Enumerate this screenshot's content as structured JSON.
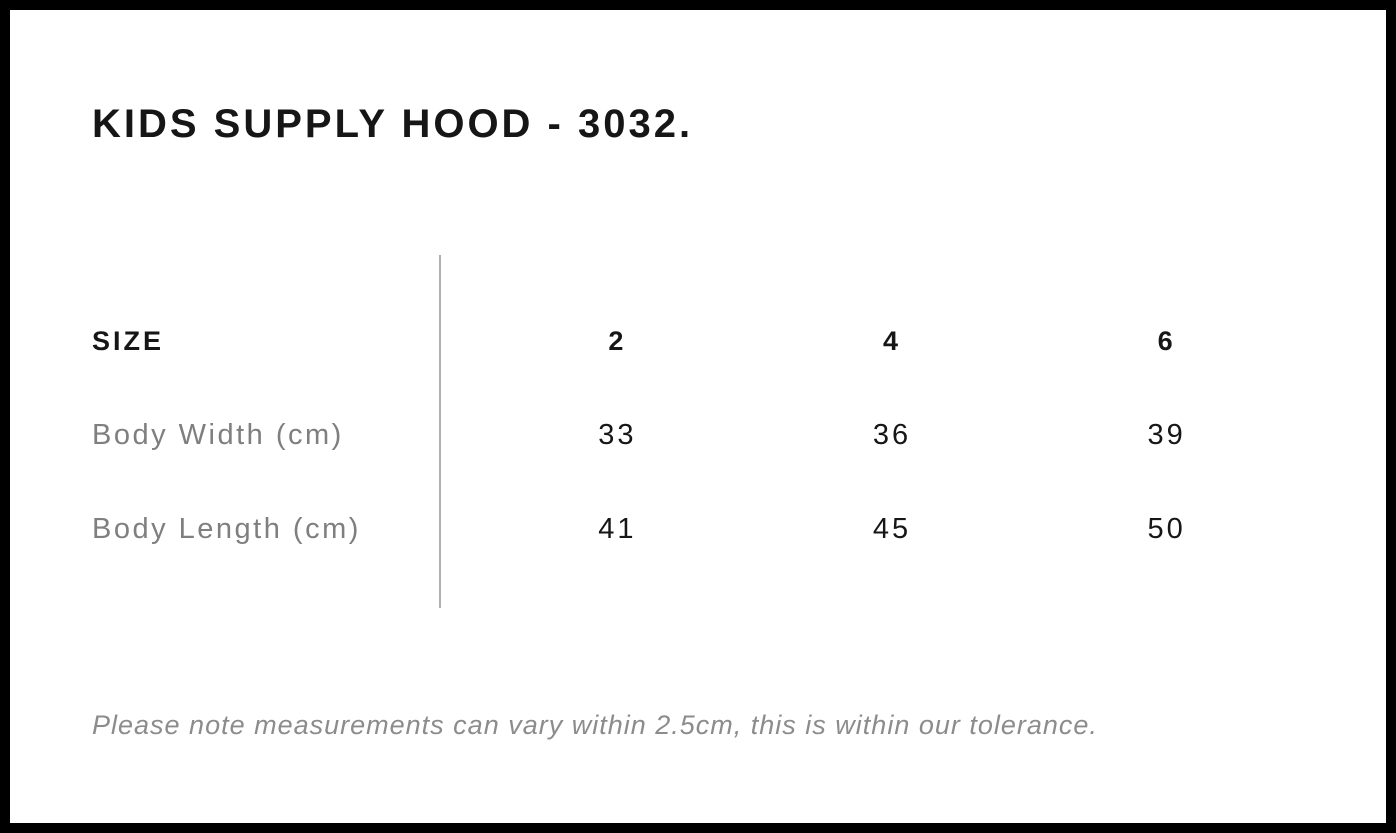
{
  "page": {
    "title": "KIDS SUPPLY HOOD - 3032.",
    "note": "Please note measurements can vary within 2.5cm, this is within our tolerance."
  },
  "size_chart": {
    "header_label": "SIZE",
    "sizes": [
      "2",
      "4",
      "6"
    ],
    "rows": [
      {
        "label": "Body Width (cm)",
        "values": [
          "33",
          "36",
          "39"
        ]
      },
      {
        "label": "Body Length (cm)",
        "values": [
          "41",
          "45",
          "50"
        ]
      }
    ]
  },
  "colors": {
    "frame_border": "#000000",
    "heading_text": "#161616",
    "value_text": "#161616",
    "row_label_gray": "#7f7f7f",
    "note_gray": "#8c8c8c",
    "divider_gray": "#b1b1b1",
    "background": "#ffffff"
  }
}
